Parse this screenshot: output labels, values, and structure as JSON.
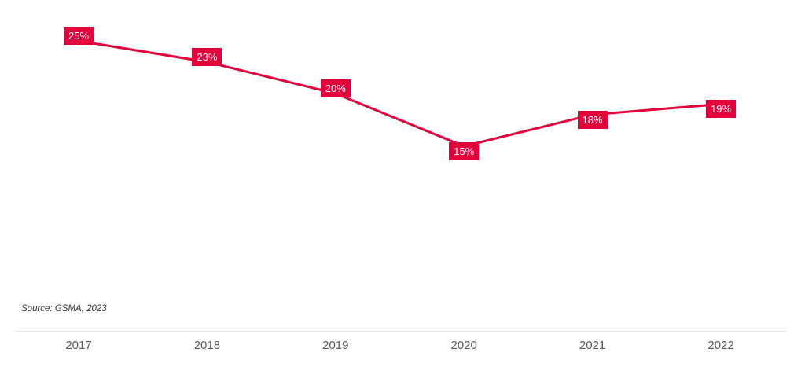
{
  "chart_data": {
    "type": "line",
    "title": "",
    "categories": [
      "2017",
      "2018",
      "2019",
      "2020",
      "2021",
      "2022"
    ],
    "series": [
      {
        "name": "percentage",
        "values": [
          25,
          23,
          20,
          15,
          18,
          19
        ],
        "data_labels": [
          "25%",
          "23%",
          "20%",
          "15%",
          "18%",
          "19%"
        ]
      }
    ],
    "xlabel": "",
    "ylabel": "",
    "grid": false,
    "legend": false,
    "y_axis_visible": false,
    "data_labels_visible": true,
    "source": "Source: GSMA, 2023",
    "colors": {
      "line": "#e4003a",
      "label_background": "#e4003a",
      "label_text": "#ffffff",
      "axis_line": "#e7e7e7",
      "tick_labels": "#595959",
      "source_text": "#333333"
    }
  }
}
